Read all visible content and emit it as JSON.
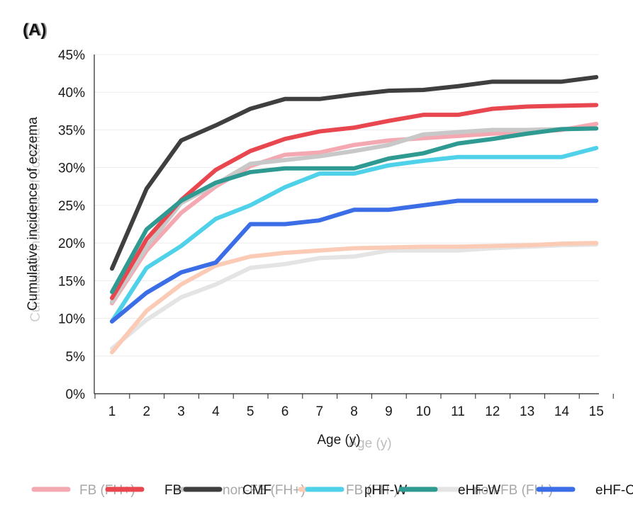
{
  "chart_data": {
    "type": "line",
    "panel_label": "(A)",
    "ylabel": "Cumulative incidence of eczema",
    "xlabel": "Age (y)",
    "ylim": [
      0,
      45
    ],
    "xlim": [
      1,
      15
    ],
    "x": [
      1,
      2,
      3,
      4,
      5,
      6,
      7,
      8,
      9,
      10,
      11,
      12,
      13,
      14,
      15
    ],
    "y_ticks": [
      "0%",
      "5%",
      "10%",
      "15%",
      "20%",
      "25%",
      "30%",
      "35%",
      "40%",
      "45%"
    ],
    "grid": "horizontal",
    "legend_position": "bottom",
    "series": [
      {
        "name": "FB (FH+)",
        "color": "#f4a9b2",
        "values": [
          12.0,
          19.0,
          24.0,
          27.5,
          30.2,
          31.7,
          32.0,
          33.0,
          33.6,
          33.9,
          34.2,
          34.5,
          34.7,
          35.0,
          35.8
        ]
      },
      {
        "name": "non-FB (FH+)",
        "color": "#c8c8c8",
        "values": [
          12.2,
          19.5,
          25.3,
          27.8,
          30.5,
          31.0,
          31.5,
          32.2,
          33.0,
          34.4,
          34.7,
          35.0,
          35.0,
          35.1,
          35.2
        ]
      },
      {
        "name": "non-FB (FH-)",
        "color": "#e4e4e4",
        "values": [
          6.0,
          9.8,
          12.8,
          14.5,
          16.7,
          17.2,
          18.0,
          18.2,
          19.0,
          19.0,
          19.0,
          19.3,
          19.5,
          19.7,
          19.8
        ]
      },
      {
        "name": "FB (FH-)",
        "color": "#fbcbb6",
        "values": [
          5.5,
          11.0,
          14.5,
          17.0,
          18.2,
          18.7,
          19.0,
          19.3,
          19.4,
          19.5,
          19.5,
          19.6,
          19.7,
          19.9,
          20.0
        ]
      },
      {
        "name": "FB",
        "color": "#e8474f",
        "values": [
          12.7,
          20.5,
          25.7,
          29.7,
          32.2,
          33.8,
          34.8,
          35.3,
          36.2,
          37.0,
          37.0,
          37.8,
          38.1,
          38.2,
          38.3
        ]
      },
      {
        "name": "CMF",
        "color": "#3f3f3f",
        "values": [
          16.6,
          27.2,
          33.6,
          35.6,
          37.8,
          39.1,
          39.1,
          39.7,
          40.2,
          40.3,
          40.8,
          41.4,
          41.4,
          41.4,
          42.0
        ]
      },
      {
        "name": "pHF-W",
        "color": "#4fd1ea",
        "values": [
          9.6,
          16.7,
          19.6,
          23.2,
          25.0,
          27.4,
          29.2,
          29.2,
          30.3,
          30.9,
          31.4,
          31.4,
          31.4,
          31.4,
          32.6
        ]
      },
      {
        "name": "eHF-W",
        "color": "#2f9a92",
        "values": [
          13.5,
          21.8,
          25.6,
          28.0,
          29.4,
          29.9,
          29.9,
          29.9,
          31.2,
          31.9,
          33.2,
          33.8,
          34.5,
          35.1,
          35.2
        ]
      },
      {
        "name": "eHF-C",
        "color": "#3b6ee6",
        "values": [
          9.6,
          13.4,
          16.1,
          17.4,
          22.5,
          22.5,
          23.0,
          24.4,
          24.4,
          25.0,
          25.6,
          25.6,
          25.6,
          25.6,
          25.6
        ]
      }
    ],
    "legend_items": [
      {
        "label": "FB (FH+)",
        "color": "#f4a9b2",
        "faded": true
      },
      {
        "label": "FB",
        "color": "#e8474f",
        "faded": false
      },
      {
        "label": "non-FB (FH+)",
        "color": "#c8c8c8",
        "faded": true
      },
      {
        "label": "CMF",
        "color": "#3f3f3f",
        "faded": false
      },
      {
        "label": "FB (FH-)",
        "color": "#fbcbb6",
        "faded": true
      },
      {
        "label": "pHF-W",
        "color": "#4fd1ea",
        "faded": false
      },
      {
        "label": "non-FB (FH-)",
        "color": "#e4e4e4",
        "faded": true
      },
      {
        "label": "eHF-W",
        "color": "#2f9a92",
        "faded": false
      },
      {
        "label": "eHF-C",
        "color": "#3b6ee6",
        "faded": false
      }
    ]
  }
}
